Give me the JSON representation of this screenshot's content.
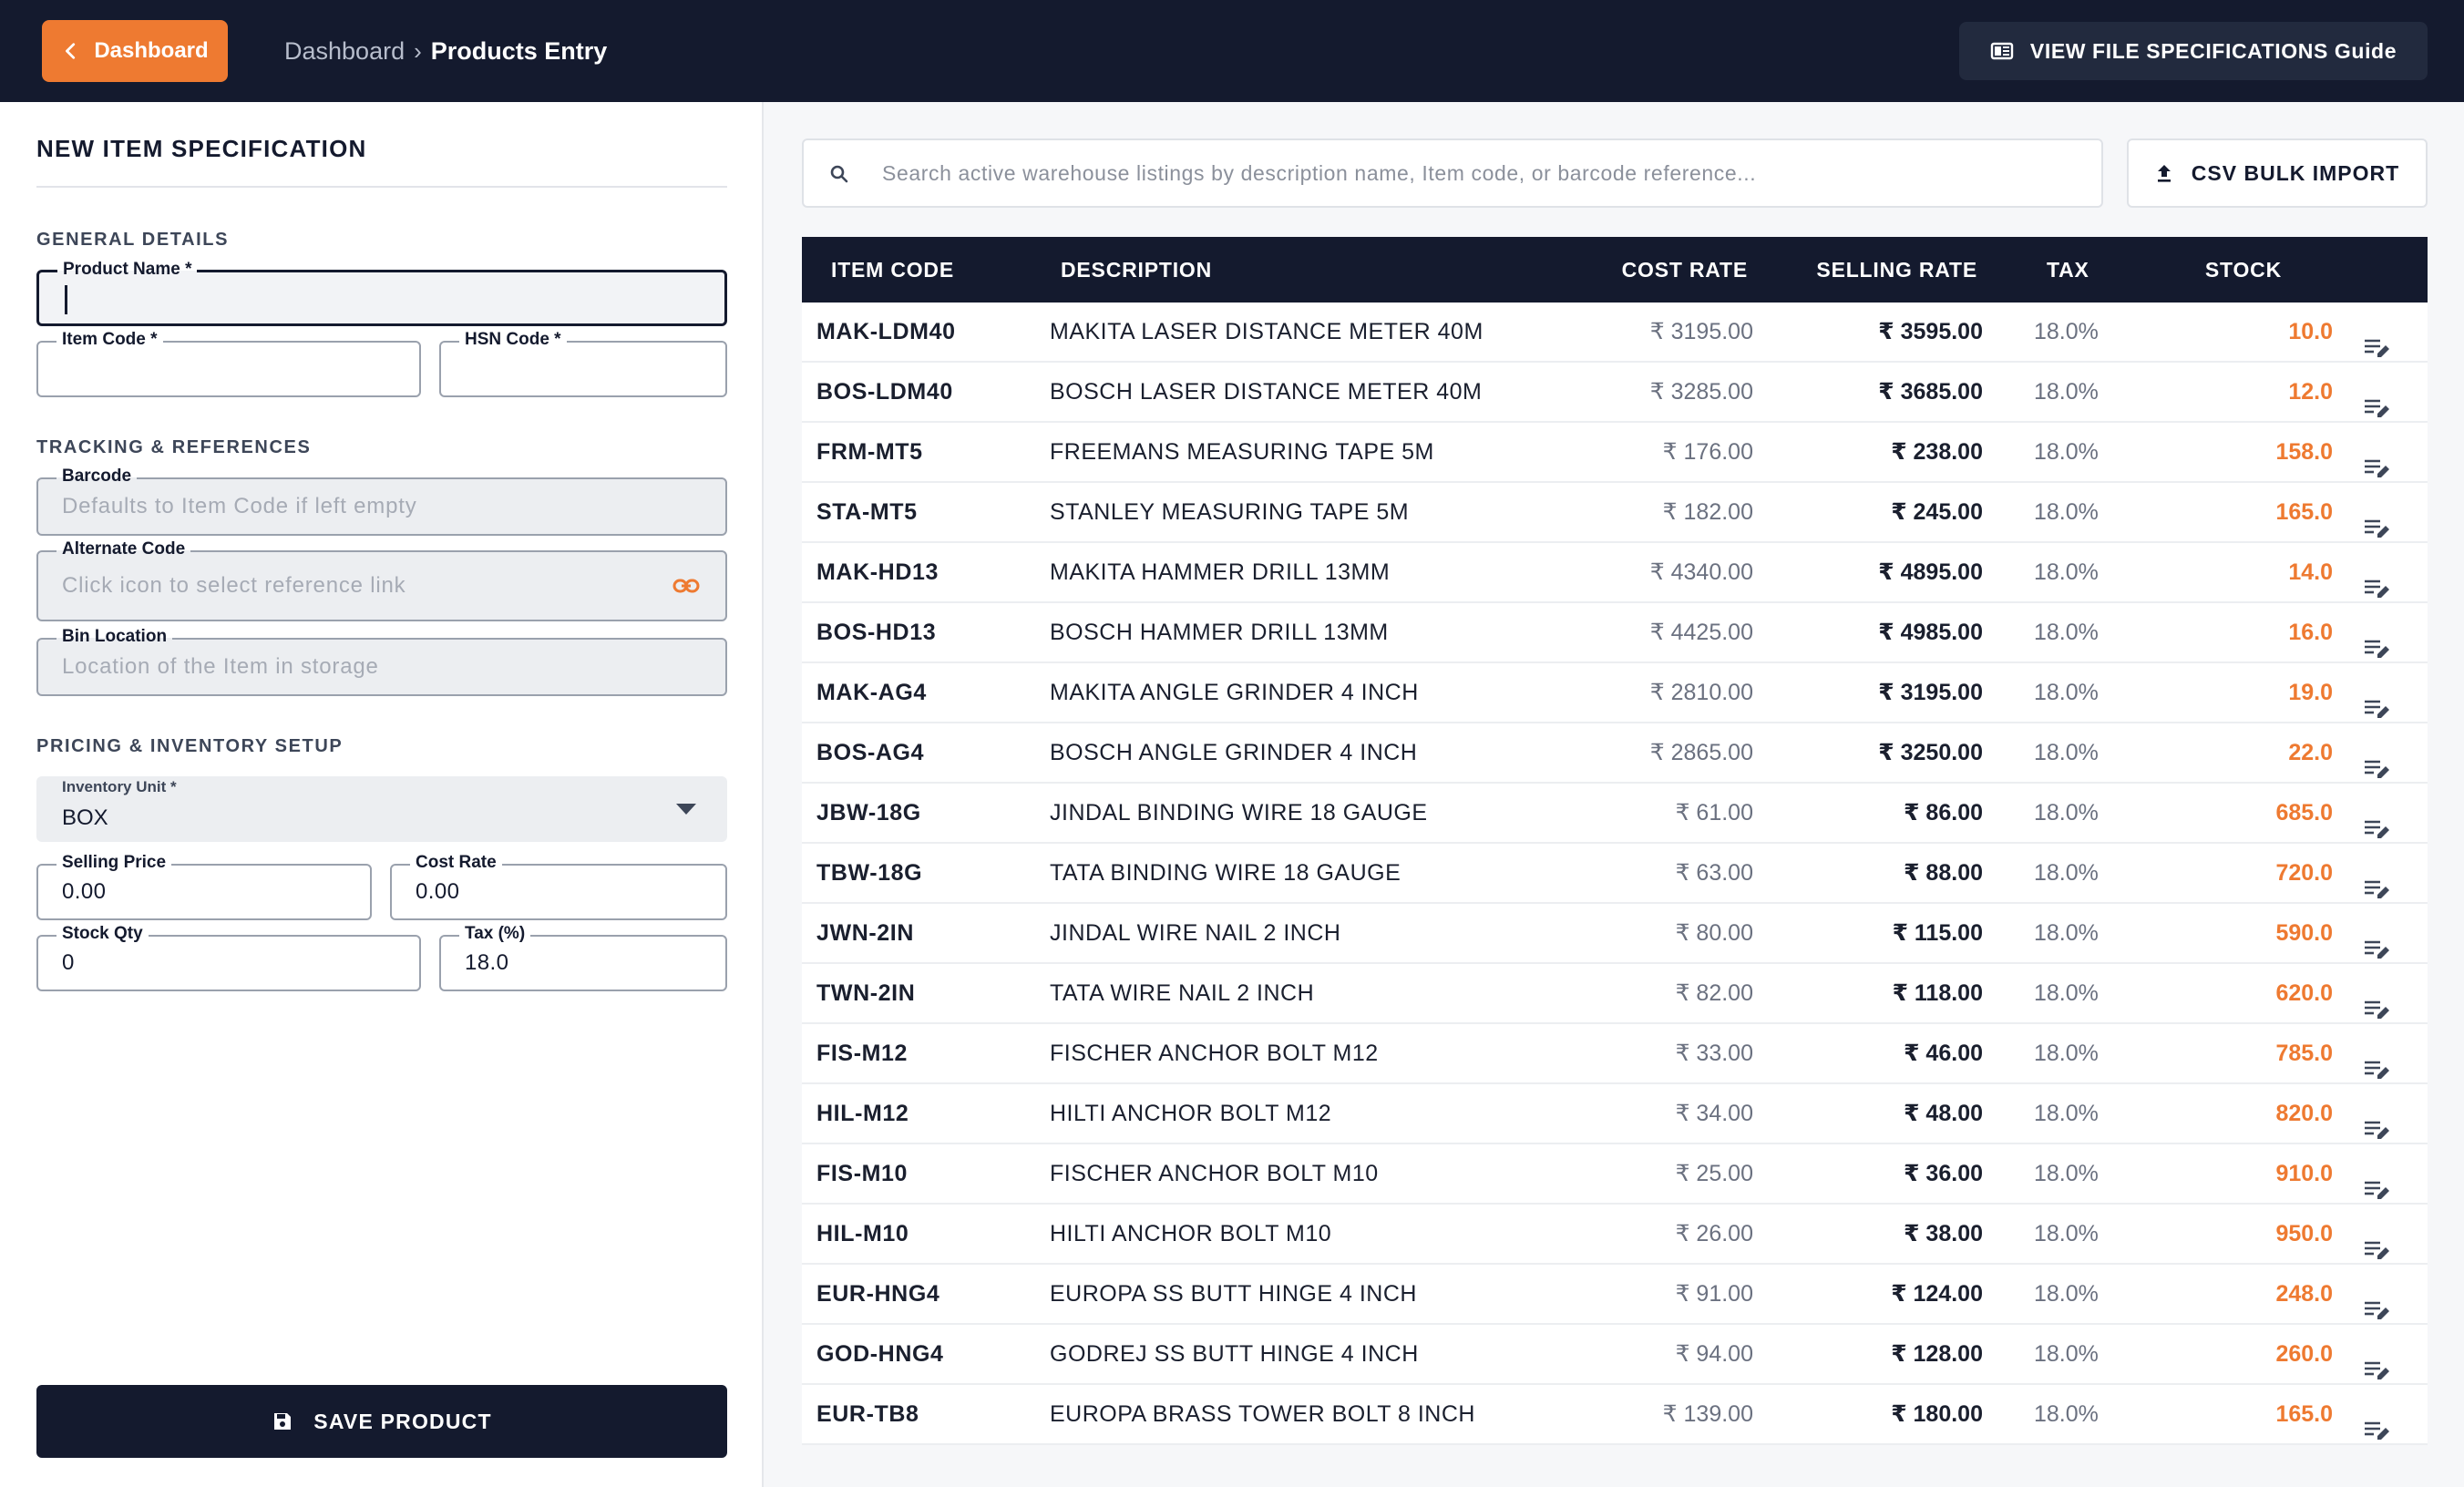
{
  "header": {
    "back_label": "Dashboard",
    "breadcrumb": {
      "parent": "Dashboard",
      "separator": "›",
      "current": "Products Entry"
    },
    "guide_label": "VIEW FILE SPECIFICATIONS Guide",
    "bg_color": "#141a2e",
    "accent_color": "#ee7a31"
  },
  "form": {
    "title": "NEW ITEM SPECIFICATION",
    "sections": {
      "general": "GENERAL DETAILS",
      "tracking": "TRACKING & REFERENCES",
      "pricing": "PRICING & INVENTORY SETUP"
    },
    "product_name": {
      "label": "Product Name *",
      "value": ""
    },
    "item_code": {
      "label": "Item Code *",
      "value": ""
    },
    "hsn_code": {
      "label": "HSN Code *",
      "value": ""
    },
    "barcode": {
      "label": "Barcode",
      "placeholder": "Defaults to Item Code if left empty"
    },
    "alternate_code": {
      "label": "Alternate Code",
      "placeholder": "Click icon to select reference link",
      "icon": "link-icon"
    },
    "bin_location": {
      "label": "Bin Location",
      "placeholder": "Location of the Item in storage"
    },
    "inventory_unit": {
      "label": "Inventory Unit *",
      "value": "BOX"
    },
    "selling_price": {
      "label": "Selling Price",
      "value": "0.00"
    },
    "cost_rate": {
      "label": "Cost Rate",
      "value": "0.00"
    },
    "stock_qty": {
      "label": "Stock Qty",
      "value": "0"
    },
    "tax": {
      "label": "Tax (%)",
      "value": "18.0"
    },
    "save_label": "SAVE PRODUCT"
  },
  "search": {
    "placeholder": "Search active warehouse listings by description name, Item code, or barcode reference..."
  },
  "csv_label": "CSV BULK IMPORT",
  "table": {
    "headers": {
      "code": "ITEM CODE",
      "desc": "DESCRIPTION",
      "cost": "COST RATE",
      "sell": "SELLING RATE",
      "tax": "TAX",
      "stock": "STOCK"
    },
    "rows": [
      {
        "code": "MAK-LDM40",
        "desc": "MAKITA LASER DISTANCE METER 40M",
        "cost": "₹ 3195.00",
        "sell": "₹ 3595.00",
        "tax": "18.0%",
        "stock": "10.0"
      },
      {
        "code": "BOS-LDM40",
        "desc": "BOSCH LASER DISTANCE METER 40M",
        "cost": "₹ 3285.00",
        "sell": "₹ 3685.00",
        "tax": "18.0%",
        "stock": "12.0"
      },
      {
        "code": "FRM-MT5",
        "desc": "FREEMANS MEASURING TAPE 5M",
        "cost": "₹ 176.00",
        "sell": "₹ 238.00",
        "tax": "18.0%",
        "stock": "158.0"
      },
      {
        "code": "STA-MT5",
        "desc": "STANLEY MEASURING TAPE 5M",
        "cost": "₹ 182.00",
        "sell": "₹ 245.00",
        "tax": "18.0%",
        "stock": "165.0"
      },
      {
        "code": "MAK-HD13",
        "desc": "MAKITA HAMMER DRILL 13MM",
        "cost": "₹ 4340.00",
        "sell": "₹ 4895.00",
        "tax": "18.0%",
        "stock": "14.0"
      },
      {
        "code": "BOS-HD13",
        "desc": "BOSCH HAMMER DRILL 13MM",
        "cost": "₹ 4425.00",
        "sell": "₹ 4985.00",
        "tax": "18.0%",
        "stock": "16.0"
      },
      {
        "code": "MAK-AG4",
        "desc": "MAKITA ANGLE GRINDER 4 INCH",
        "cost": "₹ 2810.00",
        "sell": "₹ 3195.00",
        "tax": "18.0%",
        "stock": "19.0"
      },
      {
        "code": "BOS-AG4",
        "desc": "BOSCH ANGLE GRINDER 4 INCH",
        "cost": "₹ 2865.00",
        "sell": "₹ 3250.00",
        "tax": "18.0%",
        "stock": "22.0"
      },
      {
        "code": "JBW-18G",
        "desc": "JINDAL BINDING WIRE 18 GAUGE",
        "cost": "₹ 61.00",
        "sell": "₹ 86.00",
        "tax": "18.0%",
        "stock": "685.0"
      },
      {
        "code": "TBW-18G",
        "desc": "TATA BINDING WIRE 18 GAUGE",
        "cost": "₹ 63.00",
        "sell": "₹ 88.00",
        "tax": "18.0%",
        "stock": "720.0"
      },
      {
        "code": "JWN-2IN",
        "desc": "JINDAL WIRE NAIL 2 INCH",
        "cost": "₹ 80.00",
        "sell": "₹ 115.00",
        "tax": "18.0%",
        "stock": "590.0"
      },
      {
        "code": "TWN-2IN",
        "desc": "TATA WIRE NAIL 2 INCH",
        "cost": "₹ 82.00",
        "sell": "₹ 118.00",
        "tax": "18.0%",
        "stock": "620.0"
      },
      {
        "code": "FIS-M12",
        "desc": "FISCHER ANCHOR BOLT M12",
        "cost": "₹ 33.00",
        "sell": "₹ 46.00",
        "tax": "18.0%",
        "stock": "785.0"
      },
      {
        "code": "HIL-M12",
        "desc": "HILTI ANCHOR BOLT M12",
        "cost": "₹ 34.00",
        "sell": "₹ 48.00",
        "tax": "18.0%",
        "stock": "820.0"
      },
      {
        "code": "FIS-M10",
        "desc": "FISCHER ANCHOR BOLT M10",
        "cost": "₹ 25.00",
        "sell": "₹ 36.00",
        "tax": "18.0%",
        "stock": "910.0"
      },
      {
        "code": "HIL-M10",
        "desc": "HILTI ANCHOR BOLT M10",
        "cost": "₹ 26.00",
        "sell": "₹ 38.00",
        "tax": "18.0%",
        "stock": "950.0"
      },
      {
        "code": "EUR-HNG4",
        "desc": "EUROPA SS BUTT HINGE 4 INCH",
        "cost": "₹ 91.00",
        "sell": "₹ 124.00",
        "tax": "18.0%",
        "stock": "248.0"
      },
      {
        "code": "GOD-HNG4",
        "desc": "GODREJ SS BUTT HINGE 4 INCH",
        "cost": "₹ 94.00",
        "sell": "₹ 128.00",
        "tax": "18.0%",
        "stock": "260.0"
      },
      {
        "code": "EUR-TB8",
        "desc": "EUROPA BRASS TOWER BOLT 8 INCH",
        "cost": "₹ 139.00",
        "sell": "₹ 180.00",
        "tax": "18.0%",
        "stock": "165.0"
      }
    ]
  }
}
